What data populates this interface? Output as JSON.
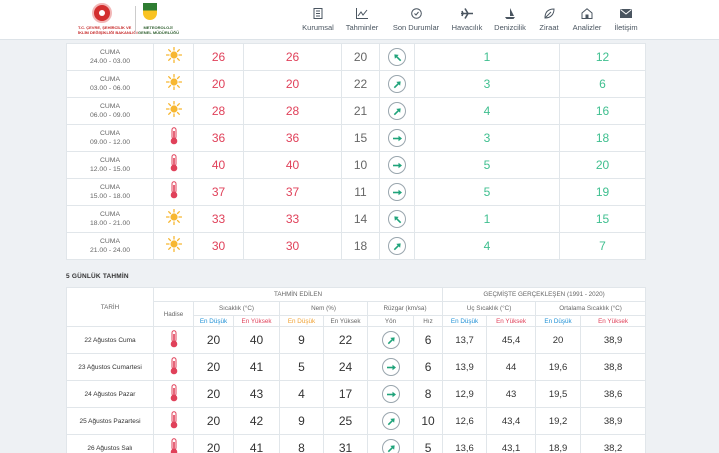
{
  "header": {
    "logo1_line1": "T.C. ÇEVRE, ŞEHİRCİLİK VE",
    "logo1_line2": "İKLİM DEĞİŞİKLİĞİ BAKANLIĞI",
    "logo2_line1": "METEOROLOJİ",
    "logo2_line2": "GENEL MÜDÜRLÜĞÜ",
    "nav": [
      {
        "label": "Kurumsal",
        "icon": "building-icon"
      },
      {
        "label": "Tahminler",
        "icon": "chart-icon"
      },
      {
        "label": "Son Durumlar",
        "icon": "clock-icon"
      },
      {
        "label": "Havacılık",
        "icon": "plane-icon"
      },
      {
        "label": "Denizcilik",
        "icon": "sailboat-icon"
      },
      {
        "label": "Ziraat",
        "icon": "leaf-icon"
      },
      {
        "label": "Analizler",
        "icon": "home-chart-icon"
      },
      {
        "label": "İletişim",
        "icon": "envelope-icon"
      }
    ]
  },
  "hourly": [
    {
      "day": "CUMA",
      "time": "24.00 - 03.00",
      "icon": "sun-icon",
      "temp": "26",
      "feels": "26",
      "humidity": "20",
      "wind_dir_deg": 315,
      "wind_speed": "1",
      "gust": "12"
    },
    {
      "day": "CUMA",
      "time": "03.00 - 06.00",
      "icon": "sun-icon",
      "temp": "20",
      "feels": "20",
      "humidity": "22",
      "wind_dir_deg": 45,
      "wind_speed": "3",
      "gust": "6"
    },
    {
      "day": "CUMA",
      "time": "06.00 - 09.00",
      "icon": "sun-icon",
      "temp": "28",
      "feels": "28",
      "humidity": "21",
      "wind_dir_deg": 45,
      "wind_speed": "4",
      "gust": "16"
    },
    {
      "day": "CUMA",
      "time": "09.00 - 12.00",
      "icon": "thermometer-icon",
      "temp": "36",
      "feels": "36",
      "humidity": "15",
      "wind_dir_deg": 90,
      "wind_speed": "3",
      "gust": "18"
    },
    {
      "day": "CUMA",
      "time": "12.00 - 15.00",
      "icon": "thermometer-icon",
      "temp": "40",
      "feels": "40",
      "humidity": "10",
      "wind_dir_deg": 90,
      "wind_speed": "5",
      "gust": "20"
    },
    {
      "day": "CUMA",
      "time": "15.00 - 18.00",
      "icon": "thermometer-icon",
      "temp": "37",
      "feels": "37",
      "humidity": "11",
      "wind_dir_deg": 90,
      "wind_speed": "5",
      "gust": "19"
    },
    {
      "day": "CUMA",
      "time": "18.00 - 21.00",
      "icon": "sun-icon",
      "temp": "33",
      "feels": "33",
      "humidity": "14",
      "wind_dir_deg": 315,
      "wind_speed": "1",
      "gust": "15"
    },
    {
      "day": "CUMA",
      "time": "21.00 - 24.00",
      "icon": "sun-icon",
      "temp": "30",
      "feels": "30",
      "humidity": "18",
      "wind_dir_deg": 45,
      "wind_speed": "4",
      "gust": "7"
    }
  ],
  "daily_section_title": "5 GÜNLÜK TAHMİN",
  "daily_headers": {
    "date": "TARİH",
    "forecast": "TAHMİN EDİLEN",
    "past": "GEÇMİŞTE GERÇEKLEŞEN (1991 - 2020)",
    "hadise": "Hadise",
    "temp": "Sıcaklık (°C)",
    "humidity": "Nem (%)",
    "wind": "Rüzgar (km/sa)",
    "extreme": "Uç Sıcaklık (°C)",
    "average": "Ortalama Sıcaklık (°C)",
    "min": "En Düşük",
    "max": "En Yüksek",
    "dir": "Yön",
    "speed": "Hız"
  },
  "daily": [
    {
      "date": "22 Ağustos Cuma",
      "icon": "thermometer-icon",
      "tmin": "20",
      "tmax": "40",
      "hmin": "9",
      "hmax": "22",
      "wind_dir_deg": 45,
      "wind_speed": "6",
      "ext_min": "13,7",
      "ext_max": "45,4",
      "avg_min": "20",
      "avg_max": "38,9"
    },
    {
      "date": "23 Ağustos Cumartesi",
      "icon": "thermometer-icon",
      "tmin": "20",
      "tmax": "41",
      "hmin": "5",
      "hmax": "24",
      "wind_dir_deg": 90,
      "wind_speed": "6",
      "ext_min": "13,9",
      "ext_max": "44",
      "avg_min": "19,6",
      "avg_max": "38,8"
    },
    {
      "date": "24 Ağustos Pazar",
      "icon": "thermometer-icon",
      "tmin": "20",
      "tmax": "43",
      "hmin": "4",
      "hmax": "17",
      "wind_dir_deg": 90,
      "wind_speed": "8",
      "ext_min": "12,9",
      "ext_max": "43",
      "avg_min": "19,5",
      "avg_max": "38,6"
    },
    {
      "date": "25 Ağustos Pazartesi",
      "icon": "thermometer-icon",
      "tmin": "20",
      "tmax": "42",
      "hmin": "9",
      "hmax": "25",
      "wind_dir_deg": 45,
      "wind_speed": "10",
      "ext_min": "12,6",
      "ext_max": "43,4",
      "avg_min": "19,2",
      "avg_max": "38,9"
    },
    {
      "date": "26 Ağustos Salı",
      "icon": "thermometer-icon",
      "tmin": "20",
      "tmax": "41",
      "hmin": "8",
      "hmax": "31",
      "wind_dir_deg": 45,
      "wind_speed": "5",
      "ext_min": "13,6",
      "ext_max": "43,1",
      "avg_min": "18,9",
      "avg_max": "38,2"
    }
  ]
}
